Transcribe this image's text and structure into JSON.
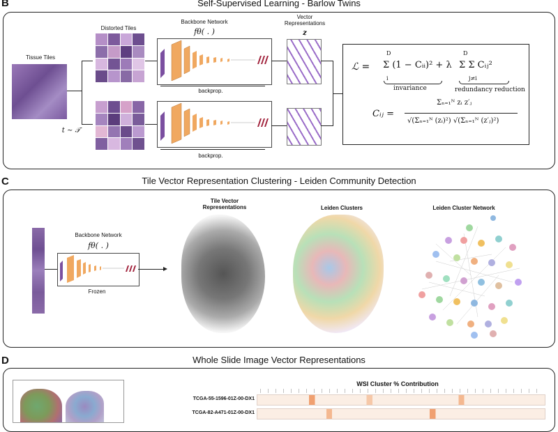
{
  "panel_b": {
    "letter": "B",
    "title": "Self-Supervised Learning - Barlow Twins",
    "tissue_tiles": "Tissue Tiles",
    "distorted_tiles": "Distorted Tiles",
    "backbone_network": "Backbone Network",
    "f_theta": "fθ( . )",
    "vector_representations": "Vector Representations",
    "z": "z",
    "backprop": "backprop.",
    "transform": "t ∼ 𝒯",
    "loss_lhs": "ℒ =",
    "loss_sum1": "Σ (1 − Cᵢᵢ)² + λ",
    "loss_sum2": "Σ Σ Cᵢⱼ²",
    "sum_upper": "D",
    "sum_lower_i": "i",
    "sum_lower_j": "j≠i",
    "invariance": "invariance",
    "redundancy_reduction": "redundancy reduction",
    "cij_lhs": "Cᵢⱼ =",
    "cij_num": "Σₙ₌₁ᴺ zᵢ z′ⱼ",
    "cij_den": "√(Σₙ₌₁ᴺ (zᵢ)²) √(Σₙ₌₁ᴺ (z′ⱼ)²)"
  },
  "panel_c": {
    "letter": "C",
    "title": "Tile Vector Representation Clustering - Leiden Community Detection",
    "backbone_network": "Backbone Network",
    "f_theta": "fθ( . )",
    "frozen": "Frozen",
    "tile_vector_representations": "Tile Vector Representations",
    "leiden_clusters": "Leiden Clusters",
    "leiden_cluster_network": "Leiden Cluster Network"
  },
  "panel_d": {
    "letter": "D",
    "title": "Whole Slide Image Vector Representations",
    "table_title": "WSI Cluster % Contribution",
    "rows": [
      "TCGA-55-1596-01Z-00-DX1",
      "TCGA-82-A471-01Z-00-DX1"
    ]
  },
  "colors": {
    "tissue": "#8a6aa8",
    "layer_orange": "#f0a860",
    "layer_purple": "#7b4fa0",
    "layer_red": "#a0203a",
    "heat_low": "#fbeee4",
    "heat_high": "#f0a070"
  }
}
